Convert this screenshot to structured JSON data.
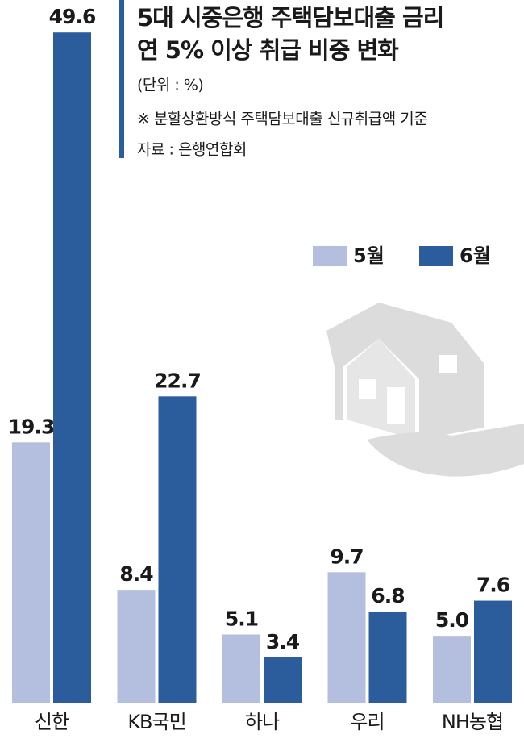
{
  "chart_data": {
    "type": "bar",
    "title": [
      "5대 시중은행 주택담보대출 금리",
      "연 5% 이상 취급 비중 변화"
    ],
    "unit": "(단위 : %)",
    "note": "※ 분할상환방식 주택담보대출 신규취급액 기준",
    "source": "자료 : 은행연합회",
    "categories": [
      "신한",
      "KB국민",
      "하나",
      "우리",
      "NH농협"
    ],
    "series": [
      {
        "name": "5월",
        "color": "#b4bede",
        "values": [
          19.3,
          8.4,
          5.1,
          9.7,
          5.0
        ],
        "value_labels": [
          "19.3",
          "8.4",
          "5.1",
          "9.7",
          "5.0"
        ]
      },
      {
        "name": "6월",
        "color": "#2b5c9c",
        "values": [
          49.6,
          22.7,
          3.4,
          6.8,
          7.6
        ]
      }
    ]
  }
}
